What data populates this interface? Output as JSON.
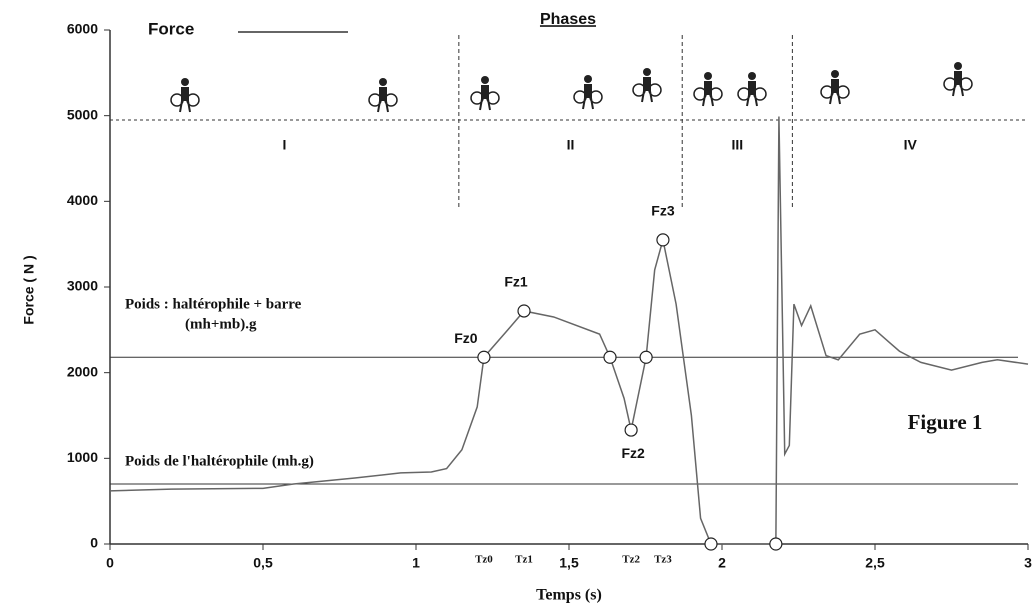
{
  "chart_data": {
    "type": "line",
    "x_label": "Temps (s)",
    "y_label": "Force ( N )",
    "xlim": [
      0,
      3
    ],
    "ylim": [
      0,
      6000
    ],
    "xticks": [
      0,
      {
        "value": 0.5,
        "label": "0,5"
      },
      1,
      {
        "value": 1.5,
        "label": "1,5"
      },
      2,
      {
        "value": 2.5,
        "label": "2,5"
      },
      3
    ],
    "yticks": [
      0,
      1000,
      2000,
      3000,
      4000,
      5000,
      6000
    ],
    "series": [
      {
        "name": "Force",
        "color": "#666666",
        "x": [
          0,
          0.2,
          0.5,
          0.6,
          0.8,
          0.95,
          1.05,
          1.1,
          1.15,
          1.2,
          1.222,
          1.3,
          1.353,
          1.45,
          1.6,
          1.634,
          1.68,
          1.703,
          1.752,
          1.78,
          1.807,
          1.85,
          1.9,
          1.93,
          1.964,
          2.1,
          2.176,
          2.186,
          2.205,
          2.22,
          2.235,
          2.26,
          2.29,
          2.34,
          2.38,
          2.45,
          2.5,
          2.58,
          2.65,
          2.75,
          2.85,
          2.9,
          3.0
        ],
        "values": [
          620,
          640,
          650,
          700,
          770,
          830,
          840,
          880,
          1100,
          1600,
          2180,
          2500,
          2720,
          2650,
          2450,
          2180,
          1700,
          1330,
          2180,
          3200,
          3550,
          2800,
          1500,
          300,
          0,
          0,
          0,
          4990,
          1050,
          1150,
          2800,
          2550,
          2780,
          2200,
          2150,
          2450,
          2500,
          2250,
          2120,
          2030,
          2120,
          2150,
          2100
        ]
      }
    ],
    "circled_points": {
      "x": [
        1.222,
        1.353,
        1.634,
        1.703,
        1.752,
        1.807,
        1.964,
        2.176
      ],
      "y": [
        2180,
        2720,
        2180,
        1330,
        2180,
        3550,
        0,
        0
      ]
    },
    "point_labels": [
      {
        "text": "Fz0",
        "x": 1.222,
        "y": 2180
      },
      {
        "text": "Fz1",
        "x": 1.353,
        "y": 2720
      },
      {
        "text": "Fz2",
        "x": 1.703,
        "y": 1330
      },
      {
        "text": "Fz3",
        "x": 1.807,
        "y": 3550
      }
    ],
    "x_markers": [
      {
        "value": 1.222,
        "label": "Tz0"
      },
      {
        "value": 1.353,
        "label": "Tz1"
      },
      {
        "value": 1.703,
        "label": "Tz2"
      },
      {
        "value": 1.807,
        "label": "Tz3"
      }
    ],
    "hlines": [
      {
        "value": 2180,
        "label": "Poids : haltérophile + barre",
        "sublabel": "(mh+mb).g"
      },
      {
        "value": 700,
        "label": "Poids de l'haltérophile (mh.g)"
      }
    ],
    "phases": {
      "title": "Phases",
      "boundaries": [
        1.14,
        1.87,
        2.23
      ],
      "labels": [
        "I",
        "II",
        "III",
        "IV"
      ],
      "line_value": 4950
    },
    "figure_label": "Figure 1"
  }
}
